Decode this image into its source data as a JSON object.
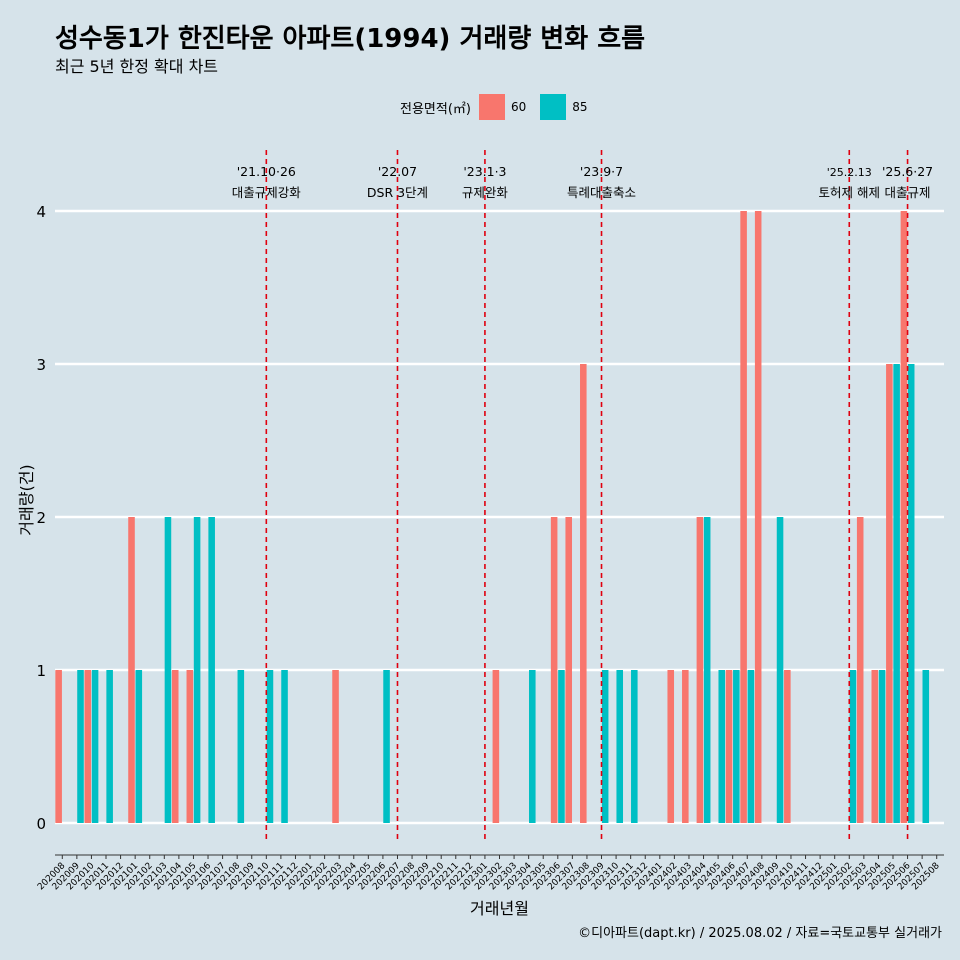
{
  "title": "성수동1가 한진타운 아파트(1994) 거래량 변화 흐름",
  "subtitle": "최근 5년 한정 확대 차트",
  "caption": "©디아파트(dapt.kr) / 2025.08.02 / 자료=국토교통부 실거래가",
  "legend": {
    "title": "전용면적(㎡)",
    "items": [
      {
        "label": "60",
        "color": "#f8766d"
      },
      {
        "label": "85",
        "color": "#00bfc4"
      }
    ]
  },
  "chart_data": {
    "type": "bar",
    "xlabel": "거래년월",
    "ylabel": "거래량(건)",
    "ylim": [
      0,
      4
    ],
    "yticks": [
      0,
      1,
      2,
      3,
      4
    ],
    "grid": true,
    "legend_position": "top",
    "categories": [
      "202008",
      "202009",
      "202010",
      "202011",
      "202012",
      "202101",
      "202102",
      "202103",
      "202104",
      "202105",
      "202106",
      "202107",
      "202108",
      "202109",
      "202110",
      "202111",
      "202112",
      "202201",
      "202202",
      "202203",
      "202204",
      "202205",
      "202206",
      "202207",
      "202208",
      "202209",
      "202210",
      "202211",
      "202212",
      "202301",
      "202302",
      "202303",
      "202304",
      "202305",
      "202306",
      "202307",
      "202308",
      "202309",
      "202310",
      "202311",
      "202312",
      "202401",
      "202402",
      "202403",
      "202404",
      "202405",
      "202406",
      "202407",
      "202408",
      "202409",
      "202410",
      "202411",
      "202412",
      "202501",
      "202502",
      "202503",
      "202504",
      "202505",
      "202506",
      "202507",
      "202508"
    ],
    "series": [
      {
        "name": "60",
        "color": "#f8766d",
        "values": [
          1,
          0,
          1,
          0,
          0,
          2,
          0,
          0,
          1,
          1,
          0,
          0,
          0,
          0,
          0,
          0,
          0,
          0,
          0,
          1,
          0,
          0,
          0,
          0,
          0,
          0,
          0,
          0,
          0,
          0,
          1,
          0,
          0,
          0,
          2,
          2,
          3,
          0,
          0,
          0,
          0,
          0,
          1,
          1,
          2,
          0,
          1,
          4,
          4,
          0,
          1,
          0,
          0,
          0,
          0,
          2,
          1,
          3,
          4,
          0,
          0
        ]
      },
      {
        "name": "85",
        "color": "#00bfc4",
        "values": [
          0,
          1,
          1,
          1,
          0,
          1,
          0,
          2,
          0,
          2,
          2,
          0,
          1,
          0,
          1,
          1,
          0,
          0,
          0,
          0,
          0,
          0,
          1,
          0,
          0,
          0,
          0,
          0,
          0,
          0,
          0,
          0,
          1,
          0,
          1,
          0,
          0,
          1,
          1,
          1,
          0,
          0,
          0,
          0,
          2,
          1,
          1,
          1,
          0,
          2,
          0,
          0,
          0,
          0,
          1,
          0,
          1,
          3,
          3,
          1,
          0
        ]
      }
    ],
    "annotations": [
      {
        "date": "202110",
        "line1": "'21.10·26",
        "line2": "대출규제강화"
      },
      {
        "date": "202207",
        "line1": "'22.07",
        "line2": "DSR 3단계"
      },
      {
        "date": "202301",
        "line1": "'23.1·3",
        "line2": "규제완화"
      },
      {
        "date": "202309",
        "line1": "'23.9·7",
        "line2": "특례대출축소"
      },
      {
        "date": "202502",
        "line1": "'25.2.13",
        "line2": "토허제 해제"
      },
      {
        "date": "202506",
        "line1": "'25.6·27",
        "line2": "대출규제"
      }
    ],
    "annotation_color": "#e0000f"
  }
}
